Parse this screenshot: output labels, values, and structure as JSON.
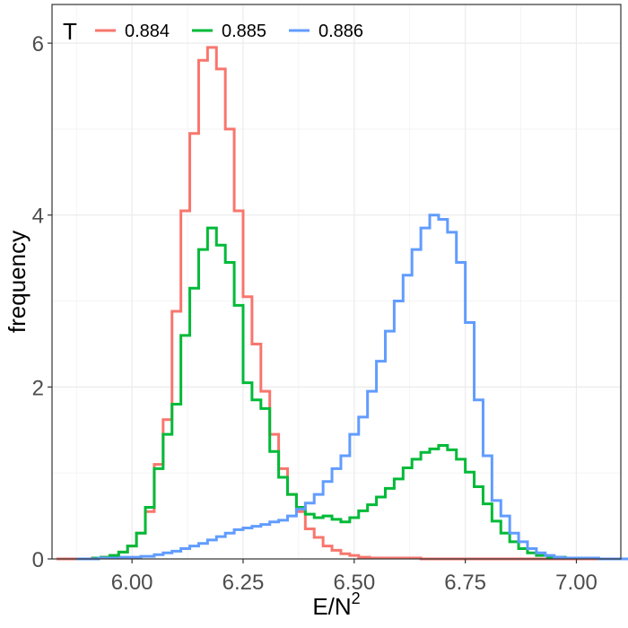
{
  "chart_data": {
    "type": "line",
    "xlabel": "E/N",
    "xlabel_superscript": "2",
    "ylabel": "frequency",
    "xlim": [
      5.82,
      7.1
    ],
    "ylim": [
      0,
      6.45
    ],
    "x_ticks": [
      6.0,
      6.25,
      6.5,
      6.75,
      7.0
    ],
    "x_tick_labels": [
      "6.00",
      "6.25",
      "6.50",
      "6.75",
      "7.00"
    ],
    "y_ticks": [
      0,
      2,
      4,
      6
    ],
    "y_tick_labels": [
      "0",
      "2",
      "4",
      "6"
    ],
    "grid": true,
    "legend": {
      "title": "T",
      "placement": "top-left"
    },
    "series": [
      {
        "name": "0.884",
        "color": "#F8766D",
        "x": [
          5.84,
          5.86,
          5.88,
          5.9,
          5.92,
          5.94,
          5.96,
          5.98,
          6.0,
          6.02,
          6.04,
          6.06,
          6.08,
          6.1,
          6.12,
          6.14,
          6.16,
          6.18,
          6.2,
          6.22,
          6.24,
          6.26,
          6.28,
          6.3,
          6.32,
          6.34,
          6.36,
          6.38,
          6.4,
          6.42,
          6.44,
          6.46,
          6.48,
          6.5,
          6.52,
          6.55,
          6.6,
          6.7,
          6.8,
          6.9,
          7.0,
          7.1
        ],
        "values": [
          0,
          0,
          0,
          0,
          0.01,
          0.02,
          0.04,
          0.08,
          0.15,
          0.3,
          0.55,
          1.1,
          1.62,
          2.88,
          4.05,
          4.95,
          5.8,
          5.95,
          5.7,
          5.0,
          4.05,
          3.05,
          2.5,
          1.95,
          1.45,
          1.05,
          0.75,
          0.55,
          0.35,
          0.25,
          0.15,
          0.1,
          0.06,
          0.04,
          0.02,
          0.01,
          0.01,
          0,
          0,
          0,
          0,
          0
        ]
      },
      {
        "name": "0.885",
        "color": "#00BA38",
        "x": [
          5.92,
          5.94,
          5.96,
          5.98,
          6.0,
          6.02,
          6.04,
          6.06,
          6.08,
          6.1,
          6.12,
          6.14,
          6.16,
          6.18,
          6.2,
          6.22,
          6.24,
          6.26,
          6.28,
          6.3,
          6.32,
          6.34,
          6.36,
          6.38,
          6.4,
          6.42,
          6.44,
          6.46,
          6.48,
          6.5,
          6.52,
          6.54,
          6.56,
          6.58,
          6.6,
          6.62,
          6.64,
          6.66,
          6.68,
          6.7,
          6.72,
          6.74,
          6.76,
          6.78,
          6.8,
          6.82,
          6.84,
          6.86,
          6.88,
          6.9,
          6.92,
          6.95,
          7.0,
          7.1
        ],
        "values": [
          0.01,
          0.02,
          0.04,
          0.08,
          0.15,
          0.3,
          0.6,
          1.05,
          1.45,
          1.8,
          2.6,
          3.15,
          3.6,
          3.85,
          3.65,
          3.45,
          2.95,
          2.05,
          1.85,
          1.75,
          1.25,
          0.95,
          0.75,
          0.6,
          0.52,
          0.48,
          0.5,
          0.46,
          0.43,
          0.48,
          0.56,
          0.63,
          0.72,
          0.82,
          0.93,
          1.06,
          1.16,
          1.24,
          1.28,
          1.32,
          1.27,
          1.16,
          1.01,
          0.84,
          0.64,
          0.44,
          0.3,
          0.2,
          0.12,
          0.07,
          0.04,
          0.02,
          0.01,
          0
        ]
      },
      {
        "name": "0.886",
        "color": "#619CFF",
        "x": [
          5.9,
          5.95,
          6.0,
          6.04,
          6.06,
          6.08,
          6.1,
          6.12,
          6.14,
          6.16,
          6.18,
          6.2,
          6.22,
          6.24,
          6.26,
          6.28,
          6.3,
          6.32,
          6.34,
          6.36,
          6.38,
          6.4,
          6.42,
          6.44,
          6.46,
          6.48,
          6.5,
          6.52,
          6.54,
          6.56,
          6.58,
          6.6,
          6.62,
          6.64,
          6.66,
          6.68,
          6.7,
          6.72,
          6.74,
          6.76,
          6.78,
          6.8,
          6.82,
          6.84,
          6.86,
          6.88,
          6.9,
          6.92,
          6.94,
          6.96,
          6.98,
          7.0,
          7.1
        ],
        "values": [
          0,
          0.01,
          0.02,
          0.03,
          0.05,
          0.07,
          0.09,
          0.12,
          0.15,
          0.18,
          0.22,
          0.26,
          0.3,
          0.34,
          0.36,
          0.38,
          0.4,
          0.43,
          0.45,
          0.5,
          0.58,
          0.65,
          0.75,
          0.9,
          1.05,
          1.2,
          1.45,
          1.65,
          1.95,
          2.3,
          2.65,
          3.0,
          3.3,
          3.6,
          3.85,
          4.0,
          3.95,
          3.8,
          3.45,
          2.75,
          1.85,
          1.2,
          0.68,
          0.5,
          0.3,
          0.2,
          0.12,
          0.07,
          0.04,
          0.02,
          0.01,
          0.01,
          0
        ]
      }
    ]
  }
}
